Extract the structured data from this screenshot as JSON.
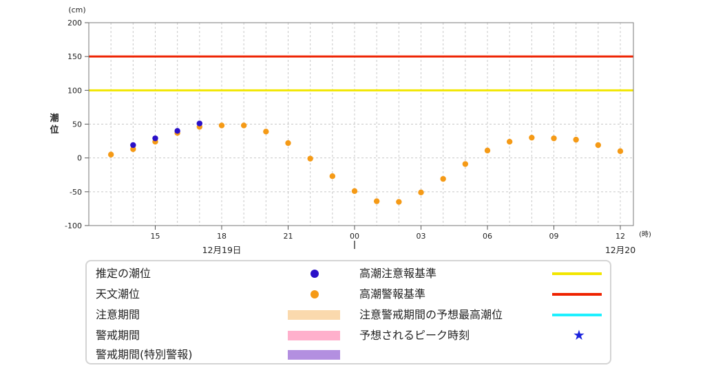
{
  "chart_data": {
    "type": "scatter",
    "unit_label": "(cm)",
    "ylabel": "潮位",
    "x_unit_label": "(時)",
    "ylim": [
      -100,
      200
    ],
    "yticks": [
      200,
      150,
      100,
      50,
      0,
      -50,
      -100
    ],
    "ytick_labels": [
      "200",
      "150",
      "100",
      "50",
      "0",
      "-50",
      "-100"
    ],
    "x_hours_range": [
      12,
      36
    ],
    "xticks": [
      {
        "hour": 15,
        "label": "15"
      },
      {
        "hour": 18,
        "label": "18"
      },
      {
        "hour": 21,
        "label": "21"
      },
      {
        "hour": 24,
        "label": "00"
      },
      {
        "hour": 27,
        "label": "03"
      },
      {
        "hour": 30,
        "label": "06"
      },
      {
        "hour": 33,
        "label": "09"
      },
      {
        "hour": 36,
        "label": "12"
      }
    ],
    "date_labels": [
      {
        "hour": 18,
        "label": "12月19日"
      },
      {
        "hour": 36,
        "label": "12月20"
      }
    ],
    "grid": true,
    "thresholds": [
      {
        "name": "高潮注意報基準",
        "value": 100,
        "color": "#f2e600"
      },
      {
        "name": "高潮警報基準",
        "value": 150,
        "color": "#ee2200"
      }
    ],
    "series": [
      {
        "name": "推定の潮位",
        "color": "#2a10c8",
        "points": [
          {
            "hour": 14,
            "value": 19
          },
          {
            "hour": 15,
            "value": 29
          },
          {
            "hour": 16,
            "value": 40
          },
          {
            "hour": 17,
            "value": 51
          }
        ]
      },
      {
        "name": "天文潮位",
        "color": "#f59a16",
        "points": [
          {
            "hour": 13,
            "value": 5
          },
          {
            "hour": 14,
            "value": 13
          },
          {
            "hour": 15,
            "value": 24
          },
          {
            "hour": 16,
            "value": 37
          },
          {
            "hour": 17,
            "value": 46
          },
          {
            "hour": 18,
            "value": 48
          },
          {
            "hour": 19,
            "value": 48
          },
          {
            "hour": 20,
            "value": 39
          },
          {
            "hour": 21,
            "value": 22
          },
          {
            "hour": 22,
            "value": -1
          },
          {
            "hour": 23,
            "value": -27
          },
          {
            "hour": 24,
            "value": -49
          },
          {
            "hour": 25,
            "value": -64
          },
          {
            "hour": 26,
            "value": -65
          },
          {
            "hour": 27,
            "value": -51
          },
          {
            "hour": 28,
            "value": -31
          },
          {
            "hour": 29,
            "value": -9
          },
          {
            "hour": 30,
            "value": 11
          },
          {
            "hour": 31,
            "value": 24
          },
          {
            "hour": 32,
            "value": 30
          },
          {
            "hour": 33,
            "value": 29
          },
          {
            "hour": 34,
            "value": 27
          },
          {
            "hour": 35,
            "value": 19
          },
          {
            "hour": 36,
            "value": 10
          }
        ]
      }
    ]
  },
  "legend": {
    "estimated_tide": {
      "label": "推定の潮位",
      "color": "#2a10c8"
    },
    "astronomical_tide": {
      "label": "天文潮位",
      "color": "#f59a16"
    },
    "advisory_period": {
      "label": "注意期間",
      "color": "#fad9ad"
    },
    "warning_period": {
      "label": "警戒期間",
      "color": "#ffb0cc"
    },
    "special_warning_period": {
      "label": "警戒期間(特別警報)",
      "color": "#b38fe0"
    },
    "advisory_criterion": {
      "label": "高潮注意報基準",
      "color": "#f2e600"
    },
    "warning_criterion": {
      "label": "高潮警報基準",
      "color": "#ee2200"
    },
    "forecast_peak_in_alert": {
      "label": "注意警戒期間の予想最高潮位",
      "color": "#1ef0ff"
    },
    "expected_peak_time": {
      "label": "予想されるピーク時刻",
      "color": "#1a22dd",
      "icon": "★"
    }
  }
}
